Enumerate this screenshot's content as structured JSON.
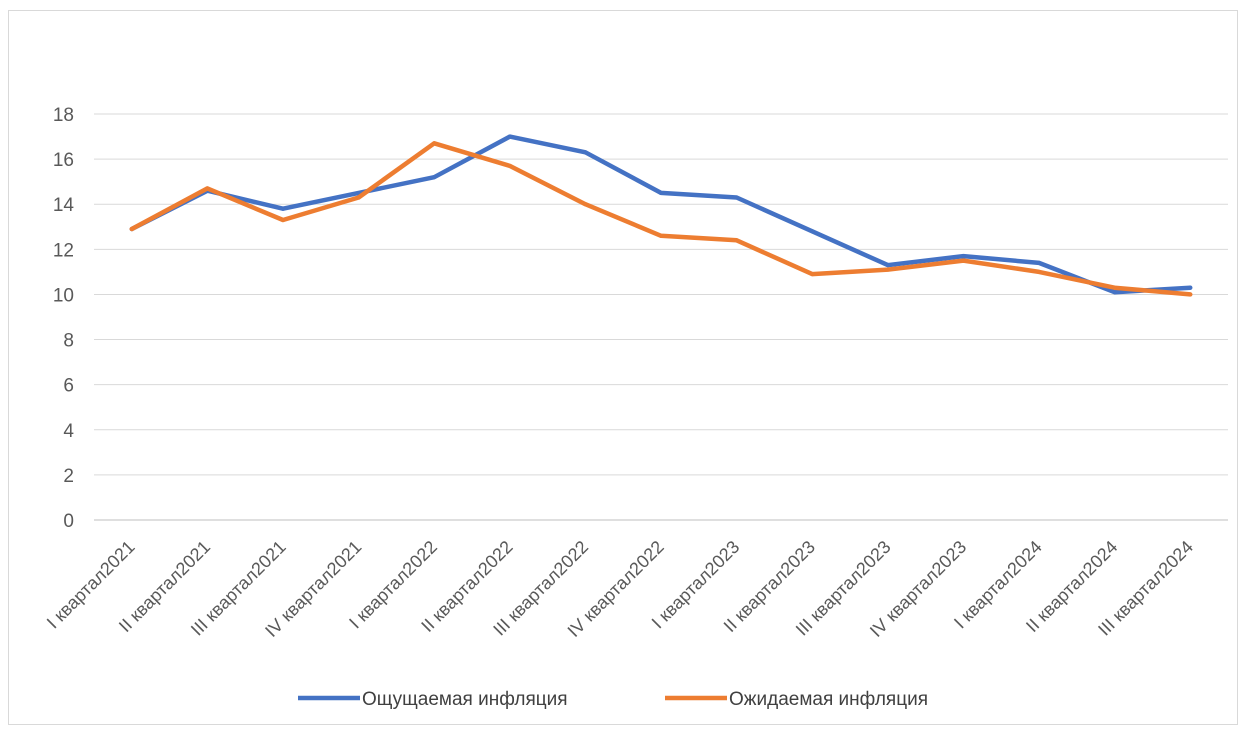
{
  "chart_data": {
    "type": "line",
    "title": "",
    "xlabel": "",
    "ylabel": "",
    "ylim": [
      0,
      18
    ],
    "yticks": [
      0,
      2,
      4,
      6,
      8,
      10,
      12,
      14,
      16,
      18
    ],
    "grid": true,
    "legend_position": "bottom",
    "categories": [
      "I квартал2021",
      "II квартал2021",
      "III квартал2021",
      "IV квартал2021",
      "I квартал2022",
      "II квартал2022",
      "III квартал2022",
      "IV квартал2022",
      "I квартал2023",
      "II квартал2023",
      "III квартал2023",
      "IV квартал2023",
      "I квартал2024",
      "II квартал2024",
      "III квартал2024"
    ],
    "series": [
      {
        "name": "Ощущаемая инфляция",
        "color": "#4472c4",
        "values": [
          12.9,
          14.6,
          13.8,
          14.5,
          15.2,
          17.0,
          16.3,
          14.5,
          14.3,
          12.8,
          11.3,
          11.7,
          11.4,
          10.1,
          10.3
        ]
      },
      {
        "name": "Ожидаемая инфляция",
        "color": "#ed7d31",
        "values": [
          12.9,
          14.7,
          13.3,
          14.3,
          16.7,
          15.7,
          14.0,
          12.6,
          12.4,
          10.9,
          11.1,
          11.5,
          11.0,
          10.3,
          10.0
        ]
      }
    ]
  }
}
